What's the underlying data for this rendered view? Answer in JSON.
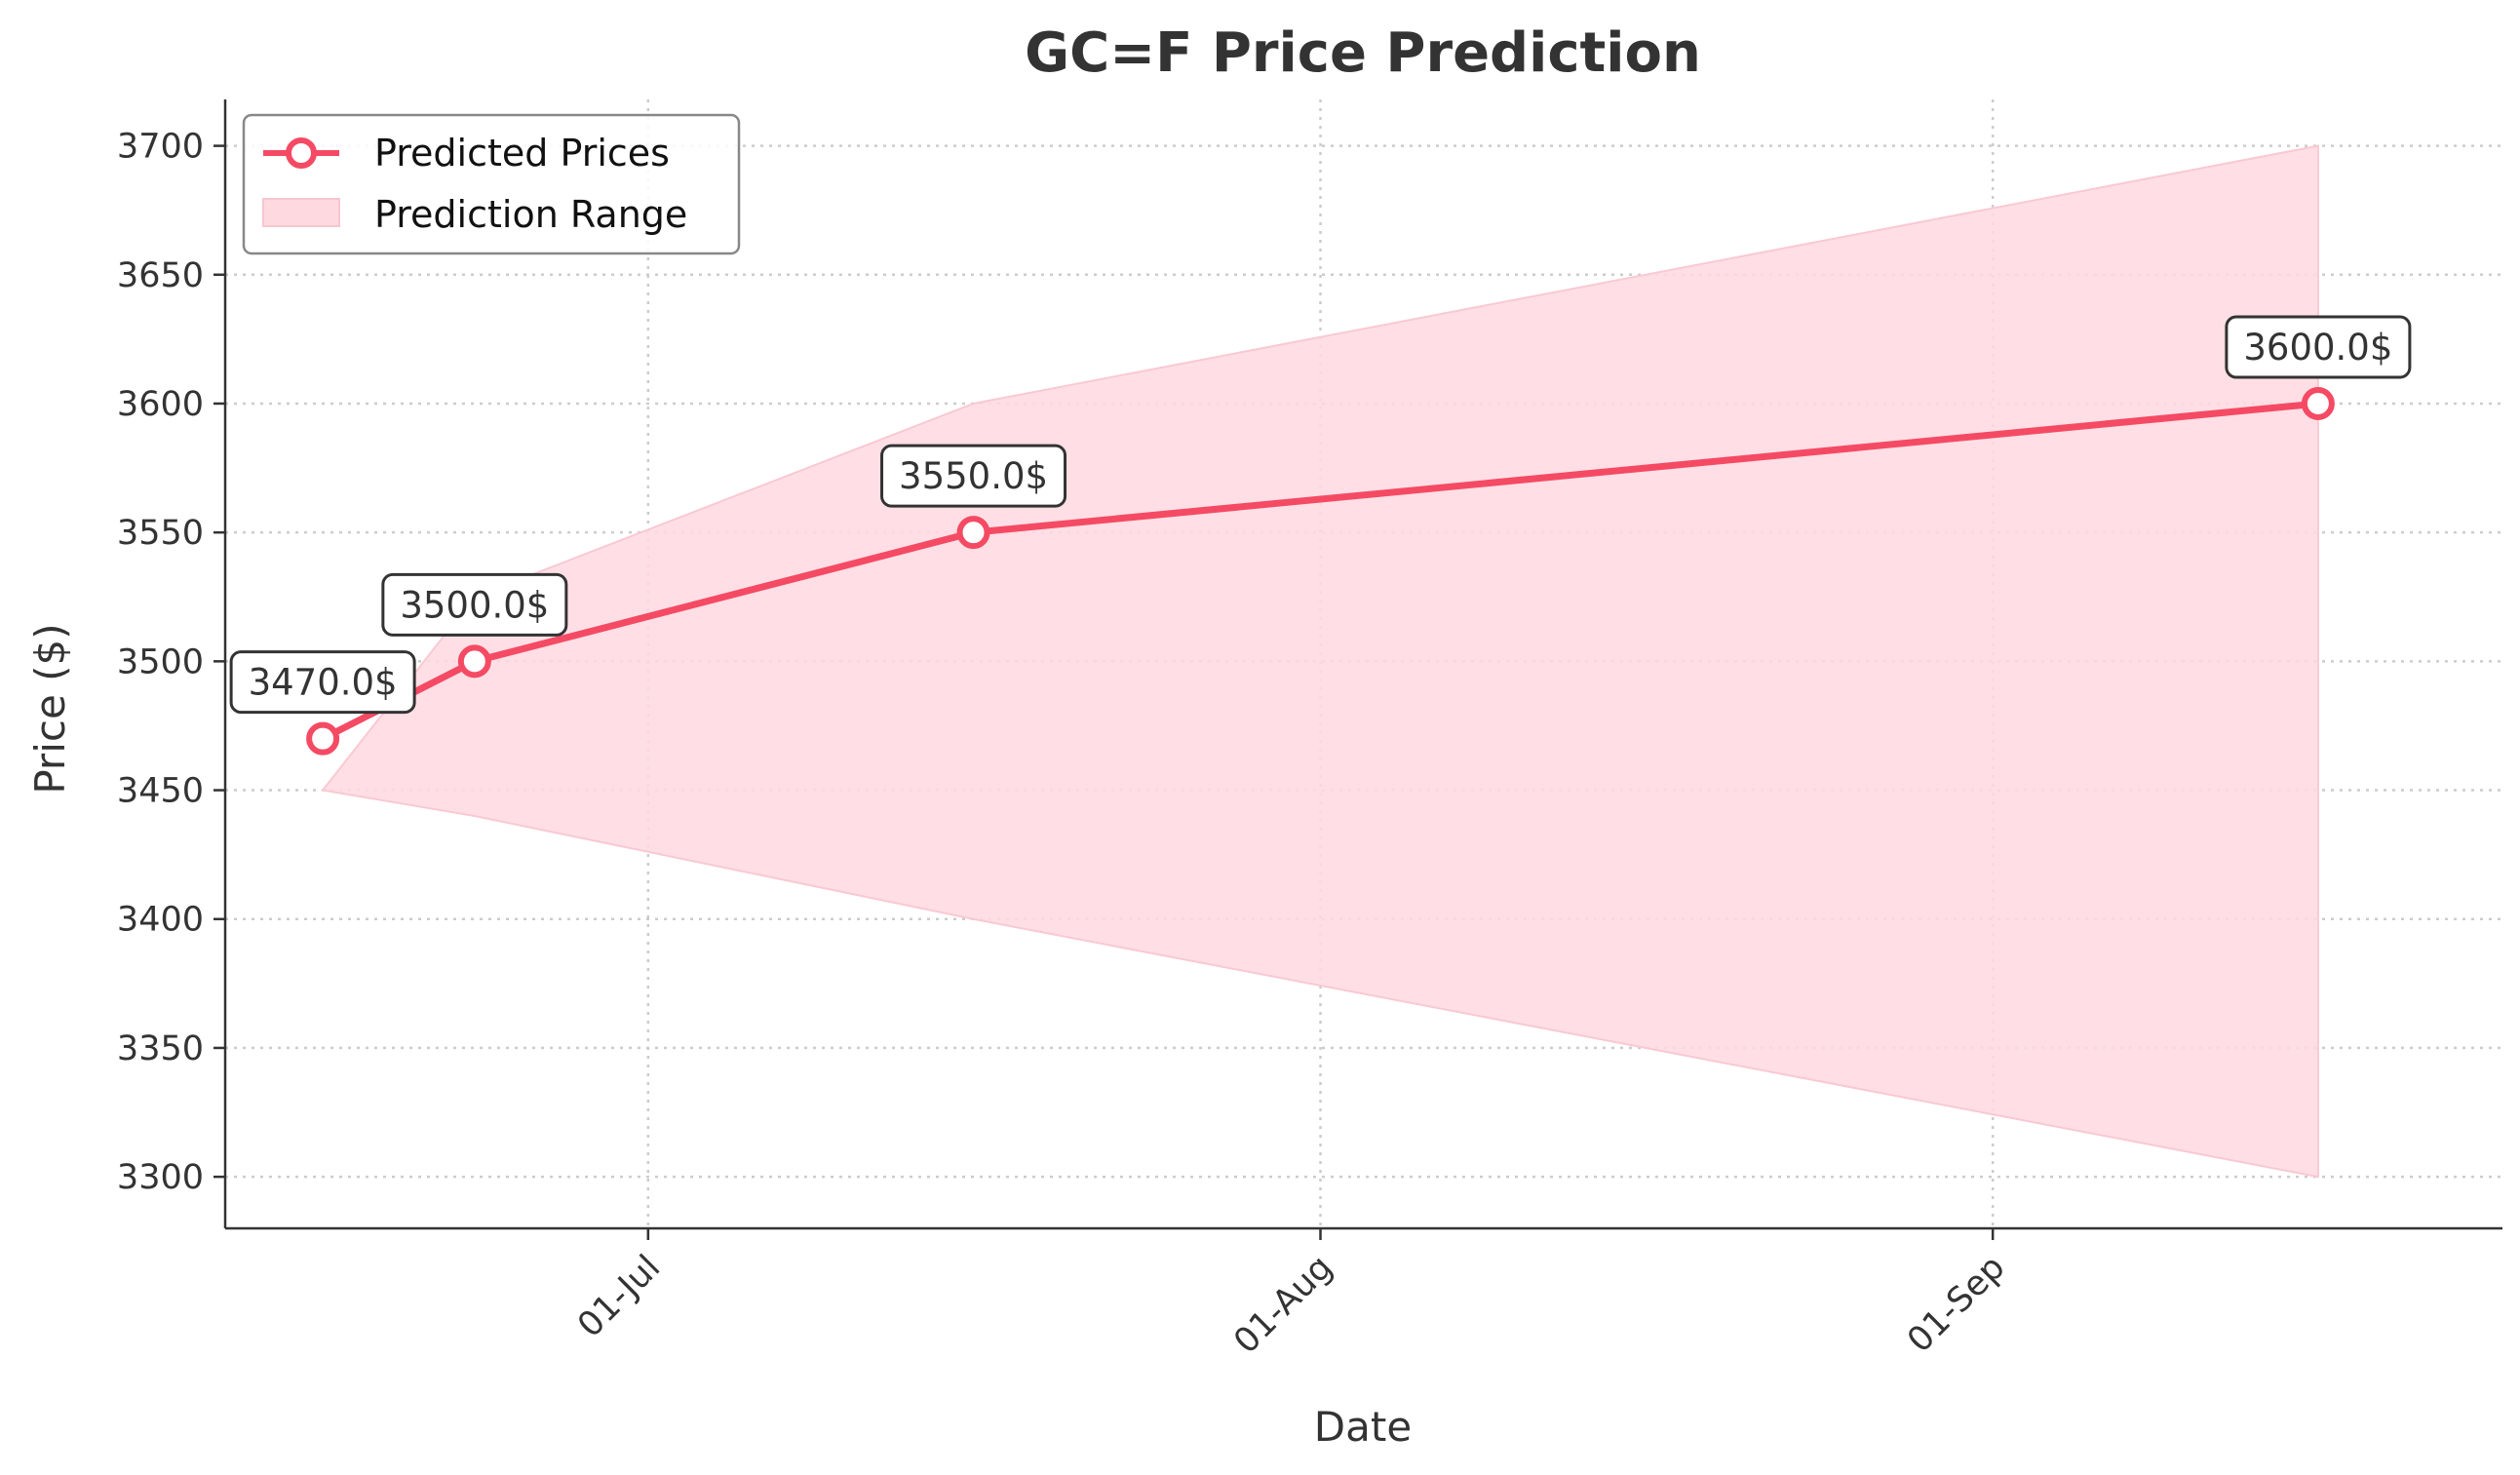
{
  "chart_data": {
    "type": "line",
    "title": "GC=F Price Prediction",
    "xlabel": "Date",
    "ylabel": "Price ($)",
    "ylim": [
      3280,
      3718
    ],
    "grid": true,
    "legend_position": "top-left",
    "colors": {
      "line": "#f54a64",
      "band": "#ffd9e0",
      "label_border": "#333333"
    },
    "x_ticks": [
      {
        "label": "01-Jul",
        "day": 30
      },
      {
        "label": "01-Aug",
        "day": 61
      },
      {
        "label": "01-Sep",
        "day": 92
      }
    ],
    "y_ticks": [
      3300,
      3350,
      3400,
      3450,
      3500,
      3550,
      3600,
      3650,
      3700
    ],
    "series": [
      {
        "name": "Predicted Prices",
        "points": [
          {
            "day": 15,
            "value": 3470,
            "label": "3470.0$"
          },
          {
            "day": 22,
            "value": 3500,
            "label": "3500.0$"
          },
          {
            "day": 45,
            "value": 3550,
            "label": "3550.0$"
          },
          {
            "day": 107,
            "value": 3600,
            "label": "3600.0$"
          }
        ]
      }
    ],
    "range": {
      "name": "Prediction Range",
      "points": [
        {
          "day": 15,
          "low": 3450,
          "high": 3450
        },
        {
          "day": 22,
          "low": 3440,
          "high": 3525
        },
        {
          "day": 45,
          "low": 3400,
          "high": 3600
        },
        {
          "day": 107,
          "low": 3300,
          "high": 3700
        }
      ]
    },
    "x_domain": [
      10.5,
      115.5
    ]
  }
}
